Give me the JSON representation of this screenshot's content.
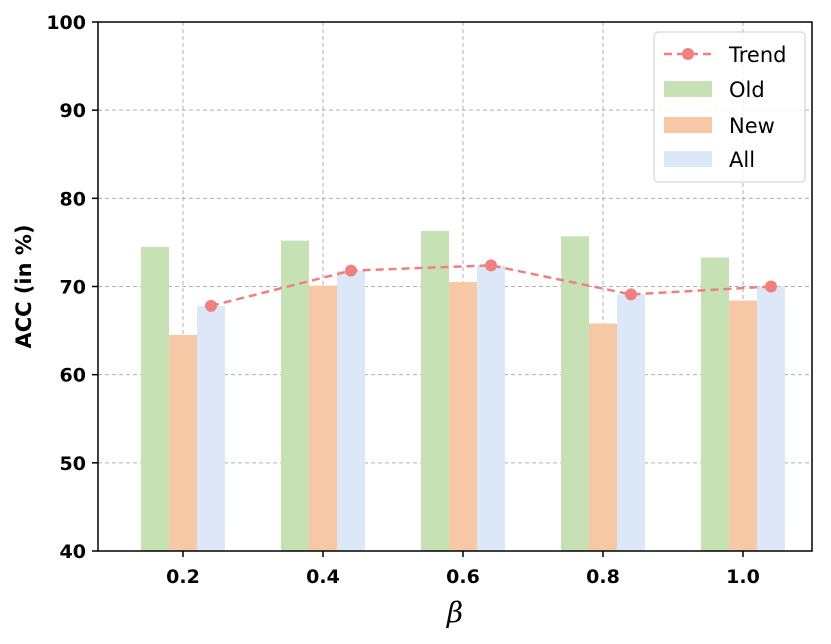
{
  "chart_data": {
    "type": "bar",
    "categories": [
      "0.2",
      "0.4",
      "0.6",
      "0.8",
      "1.0"
    ],
    "series": [
      {
        "name": "Old",
        "values": [
          74.5,
          75.2,
          76.3,
          75.7,
          73.3
        ],
        "color": "#c6e2b5"
      },
      {
        "name": "New",
        "values": [
          64.5,
          70.1,
          70.5,
          65.8,
          68.4
        ],
        "color": "#f6c8a6"
      },
      {
        "name": "All",
        "values": [
          67.8,
          71.8,
          72.4,
          69.1,
          70.0
        ],
        "color": "#dce8f8"
      }
    ],
    "trend": {
      "name": "Trend",
      "values": [
        67.8,
        71.8,
        72.4,
        69.1,
        70.0
      ],
      "color": "#f08080"
    },
    "xlabel": "β",
    "ylabel": "ACC (in %)",
    "ylim": [
      40,
      100
    ],
    "yticks": [
      "40",
      "50",
      "60",
      "70",
      "80",
      "90",
      "100"
    ],
    "grid": true,
    "legend_position": "top-right"
  }
}
